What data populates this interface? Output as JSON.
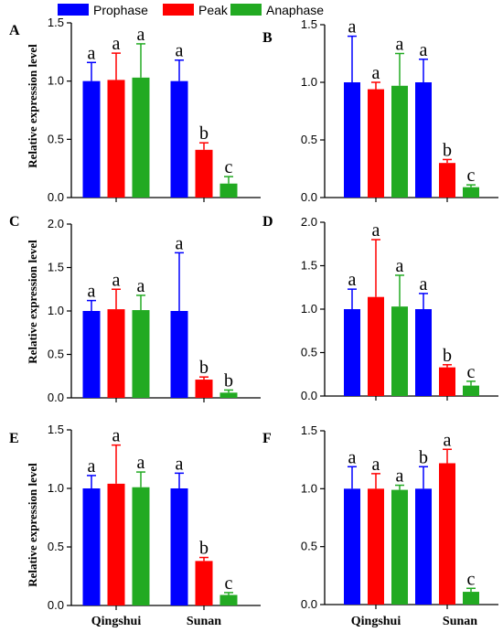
{
  "legend": [
    {
      "label": "Prophase",
      "color": "#0000ff"
    },
    {
      "label": "Peak",
      "color": "#ff0000"
    },
    {
      "label": "Anaphase",
      "color": "#22aa22"
    }
  ],
  "ylabel": "Relative expression level",
  "chart_data": [
    {
      "type": "bar",
      "panel": "A",
      "categories": [
        "Qingshui",
        "Sunan"
      ],
      "ylim": [
        0,
        1.5
      ],
      "yticks": [
        "0.0",
        "0.5",
        "1.0",
        "1.5"
      ],
      "series": [
        {
          "name": "Prophase",
          "values": [
            1.0,
            1.0
          ],
          "errors": [
            0.16,
            0.18
          ],
          "sig": [
            "a",
            "a"
          ]
        },
        {
          "name": "Peak",
          "values": [
            1.01,
            0.41
          ],
          "errors": [
            0.23,
            0.06
          ],
          "sig": [
            "a",
            "b"
          ]
        },
        {
          "name": "Anaphase",
          "values": [
            1.03,
            0.12
          ],
          "errors": [
            0.29,
            0.06
          ],
          "sig": [
            "a",
            "c"
          ]
        }
      ]
    },
    {
      "type": "bar",
      "panel": "B",
      "categories": [
        "Qingshui",
        "Sunan"
      ],
      "ylim": [
        0,
        1.5
      ],
      "yticks": [
        "0.0",
        "0.5",
        "1.0",
        "1.5"
      ],
      "series": [
        {
          "name": "Prophase",
          "values": [
            1.0,
            1.0
          ],
          "errors": [
            0.4,
            0.2
          ],
          "sig": [
            "a",
            "a"
          ]
        },
        {
          "name": "Peak",
          "values": [
            0.94,
            0.3
          ],
          "errors": [
            0.06,
            0.03
          ],
          "sig": [
            "a",
            "b"
          ]
        },
        {
          "name": "Anaphase",
          "values": [
            0.97,
            0.09
          ],
          "errors": [
            0.28,
            0.02
          ],
          "sig": [
            "a",
            "c"
          ]
        }
      ]
    },
    {
      "type": "bar",
      "panel": "C",
      "categories": [
        "Qingshui",
        "Sunan"
      ],
      "ylim": [
        0,
        2.0
      ],
      "yticks": [
        "0.0",
        "0.5",
        "1.0",
        "1.5",
        "2.0"
      ],
      "series": [
        {
          "name": "Prophase",
          "values": [
            1.0,
            1.0
          ],
          "errors": [
            0.12,
            0.67
          ],
          "sig": [
            "a",
            "a"
          ]
        },
        {
          "name": "Peak",
          "values": [
            1.02,
            0.21
          ],
          "errors": [
            0.23,
            0.03
          ],
          "sig": [
            "a",
            "b"
          ]
        },
        {
          "name": "Anaphase",
          "values": [
            1.01,
            0.06
          ],
          "errors": [
            0.17,
            0.03
          ],
          "sig": [
            "a",
            "b"
          ]
        }
      ]
    },
    {
      "type": "bar",
      "panel": "D",
      "categories": [
        "Qingshui",
        "Sunan"
      ],
      "ylim": [
        0,
        2.0
      ],
      "yticks": [
        "0.0",
        "0.5",
        "1.0",
        "1.5",
        "2.0"
      ],
      "series": [
        {
          "name": "Prophase",
          "values": [
            1.0,
            1.0
          ],
          "errors": [
            0.23,
            0.18
          ],
          "sig": [
            "a",
            "a"
          ]
        },
        {
          "name": "Peak",
          "values": [
            1.14,
            0.33
          ],
          "errors": [
            0.66,
            0.03
          ],
          "sig": [
            "a",
            "b"
          ]
        },
        {
          "name": "Anaphase",
          "values": [
            1.03,
            0.12
          ],
          "errors": [
            0.36,
            0.05
          ],
          "sig": [
            "a",
            "c"
          ]
        }
      ]
    },
    {
      "type": "bar",
      "panel": "E",
      "categories": [
        "Qingshui",
        "Sunan"
      ],
      "ylim": [
        0,
        1.5
      ],
      "yticks": [
        "0.0",
        "0.5",
        "1.0",
        "1.5"
      ],
      "series": [
        {
          "name": "Prophase",
          "values": [
            1.0,
            1.0
          ],
          "errors": [
            0.11,
            0.13
          ],
          "sig": [
            "a",
            "a"
          ]
        },
        {
          "name": "Peak",
          "values": [
            1.04,
            0.38
          ],
          "errors": [
            0.33,
            0.03
          ],
          "sig": [
            "a",
            "b"
          ]
        },
        {
          "name": "Anaphase",
          "values": [
            1.01,
            0.09
          ],
          "errors": [
            0.13,
            0.02
          ],
          "sig": [
            "a",
            "c"
          ]
        }
      ]
    },
    {
      "type": "bar",
      "panel": "F",
      "categories": [
        "Qingshui",
        "Sunan"
      ],
      "ylim": [
        0,
        1.5
      ],
      "yticks": [
        "0.0",
        "0.5",
        "1.0",
        "1.5"
      ],
      "series": [
        {
          "name": "Prophase",
          "values": [
            1.0,
            1.0
          ],
          "errors": [
            0.19,
            0.19
          ],
          "sig": [
            "a",
            "b"
          ]
        },
        {
          "name": "Peak",
          "values": [
            1.0,
            1.22
          ],
          "errors": [
            0.13,
            0.12
          ],
          "sig": [
            "a",
            "a"
          ]
        },
        {
          "name": "Anaphase",
          "values": [
            0.99,
            0.11
          ],
          "errors": [
            0.04,
            0.03
          ],
          "sig": [
            "a",
            "c"
          ]
        }
      ]
    }
  ]
}
